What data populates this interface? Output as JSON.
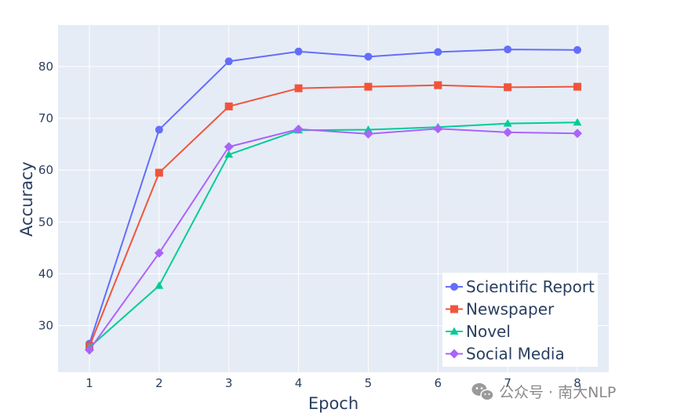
{
  "chart_data": {
    "type": "line",
    "xlabel": "Epoch",
    "ylabel": "Accuracy",
    "x": [
      1,
      2,
      3,
      4,
      5,
      6,
      7,
      8
    ],
    "xlim": [
      0.55,
      8.45
    ],
    "ylim": [
      21,
      88
    ],
    "yticks": [
      30,
      40,
      50,
      60,
      70,
      80
    ],
    "grid": true,
    "legend_position": "bottom-right",
    "series": [
      {
        "name": "Scientific Report",
        "color": "#636efa",
        "marker": "circle",
        "values": [
          26.5,
          67.8,
          81.0,
          82.9,
          81.9,
          82.8,
          83.3,
          83.2
        ]
      },
      {
        "name": "Newspaper",
        "color": "#ef553b",
        "marker": "square",
        "values": [
          26.0,
          59.5,
          72.3,
          75.8,
          76.1,
          76.4,
          76.0,
          76.1
        ]
      },
      {
        "name": "Novel",
        "color": "#00cc96",
        "marker": "triangle-up",
        "values": [
          25.8,
          37.7,
          63.0,
          67.7,
          67.8,
          68.3,
          69.0,
          69.2
        ]
      },
      {
        "name": "Social Media",
        "color": "#ab63fa",
        "marker": "diamond",
        "values": [
          25.3,
          44.0,
          64.5,
          67.9,
          67.0,
          68.0,
          67.3,
          67.1
        ]
      }
    ]
  },
  "watermark": {
    "text": "公众号 · 南大NLP",
    "icon": "wechat-icon"
  },
  "colors": {
    "plot_background": "#e5ecf6",
    "grid": "#ffffff",
    "text": "#2a3f5f"
  }
}
